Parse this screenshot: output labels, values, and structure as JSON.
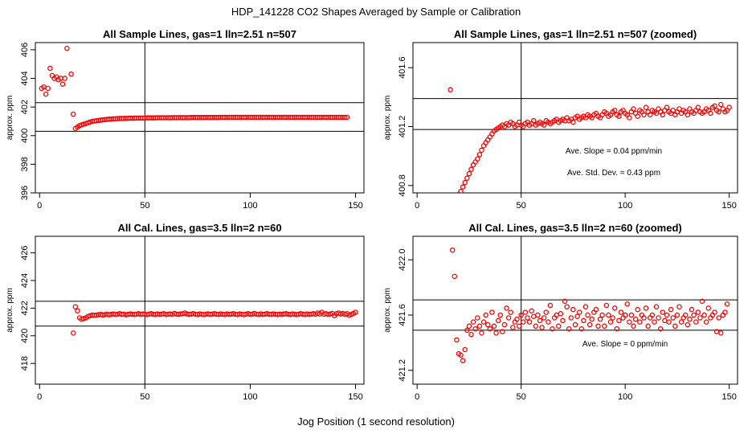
{
  "figure": {
    "title": "HDP_141228  CO2 Shapes Averaged by Sample or Calibration",
    "xlabel": "Jog Position (1 second resolution)"
  },
  "colors": {
    "points": "#ff0000",
    "lines": "#000000",
    "background": "#ffffff"
  },
  "chart_data": [
    {
      "type": "scatter",
      "title": "All Sample Lines, gas=1 lln=2.51 n=507",
      "xlabel": "",
      "ylabel": "approx. ppm",
      "xlim": [
        -2,
        154
      ],
      "ylim": [
        396,
        406.5
      ],
      "xticks": [
        "0",
        "50",
        "100",
        "150"
      ],
      "yticks": [
        "396",
        "398",
        "400",
        "402",
        "404",
        "406"
      ],
      "reference_lines": {
        "vertical_x": 50,
        "horizontal_y": [
          402.3,
          400.3
        ]
      },
      "annotations": [],
      "series": [
        {
          "x_start": 1,
          "x_step": 1,
          "values": [
            403.3,
            403.4,
            402.9,
            403.3,
            404.7,
            404.2,
            404.0,
            404.1,
            403.9,
            404.0,
            403.6,
            404.0,
            406.1,
            null,
            404.3,
            401.5,
            400.5,
            400.6,
            400.7,
            400.75,
            400.8,
            400.85,
            400.9,
            400.95,
            401.0,
            401.02,
            401.04,
            401.06,
            401.08,
            401.1,
            401.12,
            401.14,
            401.15,
            401.16,
            401.17,
            401.18,
            401.19,
            401.2,
            401.2,
            401.2,
            401.21,
            401.21,
            401.22,
            401.22,
            401.22,
            401.23,
            401.23,
            401.23,
            401.23,
            401.23,
            401.24,
            401.24,
            401.24,
            401.24,
            401.24,
            401.25,
            401.25,
            401.25,
            401.25,
            401.25,
            401.25,
            401.25,
            401.26,
            401.26,
            401.26,
            401.26,
            401.26,
            401.26,
            401.26,
            401.26,
            401.26,
            401.27,
            401.27,
            401.27,
            401.27,
            401.27,
            401.27,
            401.27,
            401.27,
            401.27,
            401.27,
            401.27,
            401.27,
            401.27,
            401.27,
            401.28,
            401.28,
            401.28,
            401.28,
            401.28,
            401.28,
            401.28,
            401.28,
            401.28,
            401.28,
            401.28,
            401.28,
            401.28,
            401.28,
            401.28,
            401.28,
            401.28,
            401.28,
            401.28,
            401.28,
            401.28,
            401.28,
            401.28,
            401.28,
            401.28,
            401.28,
            401.28,
            401.28,
            401.28,
            401.28,
            401.28,
            401.28,
            401.28,
            401.28,
            401.28,
            401.28,
            401.28,
            401.28,
            401.28,
            401.28,
            401.28,
            401.28,
            401.28,
            401.28,
            401.28,
            401.28,
            401.28,
            401.28,
            401.28,
            401.28,
            401.28,
            401.28,
            401.28,
            401.28,
            401.28,
            401.28,
            401.28,
            401.28,
            401.28,
            401.28,
            401.28
          ]
        }
      ]
    },
    {
      "type": "scatter",
      "title": "All Sample Lines, gas=1 lln=2.51 n=507 (zoomed)",
      "xlabel": "",
      "ylabel": "approx. ppm",
      "xlim": [
        -2,
        154
      ],
      "ylim": [
        400.75,
        401.77
      ],
      "xticks": [
        "0",
        "50",
        "100",
        "150"
      ],
      "yticks": [
        "400.8",
        "401.2",
        "401.6"
      ],
      "reference_lines": {
        "vertical_x": 50,
        "horizontal_y": [
          401.39,
          401.18
        ]
      },
      "annotations": [
        "Ave. Slope =  0.04  ppm/min",
        "Ave. Std. Dev. =  0.43  ppm"
      ],
      "series": [
        {
          "x_start": 16,
          "x_step": 1,
          "values": [
            401.45,
            null,
            null,
            null,
            400.74,
            400.76,
            400.79,
            400.82,
            400.85,
            400.88,
            400.91,
            400.94,
            400.96,
            400.98,
            401.01,
            401.04,
            401.07,
            401.09,
            401.11,
            401.13,
            401.15,
            401.17,
            401.18,
            401.19,
            401.2,
            401.21,
            401.2,
            401.22,
            401.21,
            401.23,
            401.22,
            401.2,
            401.21,
            401.23,
            401.21,
            401.2,
            401.22,
            401.23,
            401.21,
            401.22,
            401.24,
            401.21,
            401.22,
            401.23,
            401.22,
            401.21,
            401.24,
            401.23,
            401.22,
            401.23,
            401.24,
            401.25,
            401.23,
            401.24,
            401.25,
            401.24,
            401.26,
            401.24,
            401.25,
            401.23,
            401.26,
            401.27,
            401.25,
            401.26,
            401.27,
            401.26,
            401.28,
            401.27,
            401.26,
            401.28,
            401.29,
            401.27,
            401.26,
            401.28,
            401.3,
            401.29,
            401.27,
            401.28,
            401.3,
            401.31,
            401.28,
            401.27,
            401.3,
            401.31,
            401.29,
            401.28,
            401.26,
            401.3,
            401.32,
            401.29,
            401.27,
            401.31,
            401.3,
            401.28,
            401.33,
            401.3,
            401.28,
            401.31,
            401.3,
            401.29,
            401.32,
            401.3,
            401.28,
            401.31,
            401.33,
            401.3,
            401.29,
            401.31,
            401.28,
            401.3,
            401.32,
            401.29,
            401.31,
            401.3,
            401.28,
            401.32,
            401.3,
            401.29,
            401.31,
            401.33,
            401.3,
            401.29,
            401.3,
            401.32,
            401.31,
            401.29,
            401.33,
            401.34,
            401.31,
            401.3,
            401.35,
            401.32,
            401.3,
            401.31,
            401.33
          ]
        }
      ]
    },
    {
      "type": "scatter",
      "title": "All Cal. Lines, gas=3.5 lln=2 n=60",
      "xlabel": "",
      "ylabel": "approx. ppm",
      "xlim": [
        -2,
        154
      ],
      "ylim": [
        416.5,
        427.2
      ],
      "xticks": [
        "0",
        "50",
        "100",
        "150"
      ],
      "yticks": [
        "418",
        "420",
        "422",
        "424",
        "426"
      ],
      "reference_lines": {
        "vertical_x": 50,
        "horizontal_y": [
          422.5,
          420.7
        ]
      },
      "annotations": [],
      "series": [
        {
          "x_start": 16,
          "x_step": 1,
          "values": [
            420.2,
            422.1,
            421.8,
            421.3,
            421.2,
            421.25,
            421.3,
            421.4,
            421.45,
            421.5,
            421.48,
            421.5,
            421.52,
            421.55,
            421.5,
            421.53,
            421.56,
            421.52,
            421.55,
            421.58,
            421.54,
            421.56,
            421.6,
            421.55,
            421.57,
            421.52,
            421.55,
            421.58,
            421.56,
            421.54,
            421.57,
            421.6,
            421.55,
            421.58,
            421.56,
            421.53,
            421.57,
            421.6,
            421.56,
            421.54,
            421.58,
            421.55,
            421.57,
            421.6,
            421.54,
            421.56,
            421.58,
            421.55,
            421.62,
            421.57,
            421.55,
            421.58,
            421.6,
            421.65,
            421.58,
            421.55,
            421.57,
            421.6,
            421.56,
            421.54,
            421.58,
            421.56,
            421.53,
            421.57,
            421.59,
            421.55,
            421.57,
            421.6,
            421.56,
            421.55,
            421.58,
            421.56,
            421.54,
            421.58,
            421.55,
            421.57,
            421.6,
            421.56,
            421.54,
            421.58,
            421.56,
            421.53,
            421.57,
            421.6,
            421.55,
            421.57,
            421.62,
            421.56,
            421.54,
            421.58,
            421.55,
            421.57,
            421.6,
            421.56,
            421.55,
            421.58,
            421.56,
            421.54,
            421.57,
            421.55,
            421.58,
            421.6,
            421.56,
            421.54,
            421.58,
            421.56,
            421.53,
            421.57,
            421.6,
            421.56,
            421.54,
            421.58,
            421.55,
            421.57,
            421.6,
            421.56,
            421.65,
            421.58,
            421.7,
            421.56,
            421.6,
            421.55,
            421.58,
            421.62,
            421.45,
            421.6,
            421.65,
            421.58,
            421.62,
            421.55,
            421.6,
            421.48,
            421.55,
            421.62,
            421.7
          ]
        }
      ]
    },
    {
      "type": "scatter",
      "title": "All Cal. Lines, gas=3.5 lln=2 n=60 (zoomed)",
      "xlabel": "",
      "ylabel": "approx. ppm",
      "xlim": [
        -2,
        154
      ],
      "ylim": [
        421.1,
        422.17
      ],
      "xticks": [
        "0",
        "50",
        "100",
        "150"
      ],
      "yticks": [
        "421.2",
        "421.6",
        "422.0"
      ],
      "reference_lines": {
        "vertical_x": 50,
        "horizontal_y": [
          421.71,
          421.49
        ]
      },
      "annotations": [
        "Ave. Slope =  0  ppm/min"
      ],
      "series": [
        {
          "x_start": 17,
          "x_step": 1,
          "values": [
            422.07,
            421.88,
            421.42,
            421.32,
            421.31,
            421.27,
            421.35,
            421.49,
            421.52,
            421.46,
            421.55,
            421.5,
            421.58,
            421.52,
            421.47,
            421.55,
            421.6,
            421.53,
            421.5,
            421.62,
            421.52,
            421.47,
            421.56,
            421.6,
            421.48,
            421.53,
            421.65,
            421.58,
            421.62,
            421.51,
            421.55,
            421.57,
            421.52,
            421.6,
            421.55,
            421.62,
            421.58,
            421.55,
            421.63,
            421.59,
            421.52,
            421.6,
            421.56,
            421.51,
            421.58,
            421.62,
            421.55,
            421.67,
            421.5,
            421.58,
            421.6,
            421.52,
            421.61,
            421.56,
            421.7,
            421.66,
            421.5,
            421.58,
            421.64,
            421.53,
            421.59,
            421.62,
            421.5,
            421.56,
            421.66,
            421.6,
            421.53,
            421.57,
            421.62,
            421.64,
            421.52,
            421.57,
            421.6,
            421.52,
            421.67,
            421.6,
            421.55,
            421.58,
            421.65,
            421.5,
            421.56,
            421.62,
            421.58,
            421.6,
            421.68,
            421.55,
            421.6,
            421.52,
            421.57,
            421.64,
            421.55,
            421.6,
            421.58,
            421.65,
            421.52,
            421.58,
            421.6,
            421.55,
            421.66,
            421.58,
            421.5,
            421.62,
            421.56,
            421.6,
            421.55,
            421.64,
            421.58,
            421.52,
            421.6,
            421.66,
            421.55,
            421.58,
            421.6,
            421.53,
            421.57,
            421.64,
            421.6,
            421.55,
            421.62,
            421.58,
            421.7,
            421.6,
            421.55,
            421.65,
            421.58,
            421.6,
            421.62,
            421.48,
            421.58,
            421.47,
            421.6,
            421.62,
            421.68
          ]
        }
      ]
    }
  ]
}
